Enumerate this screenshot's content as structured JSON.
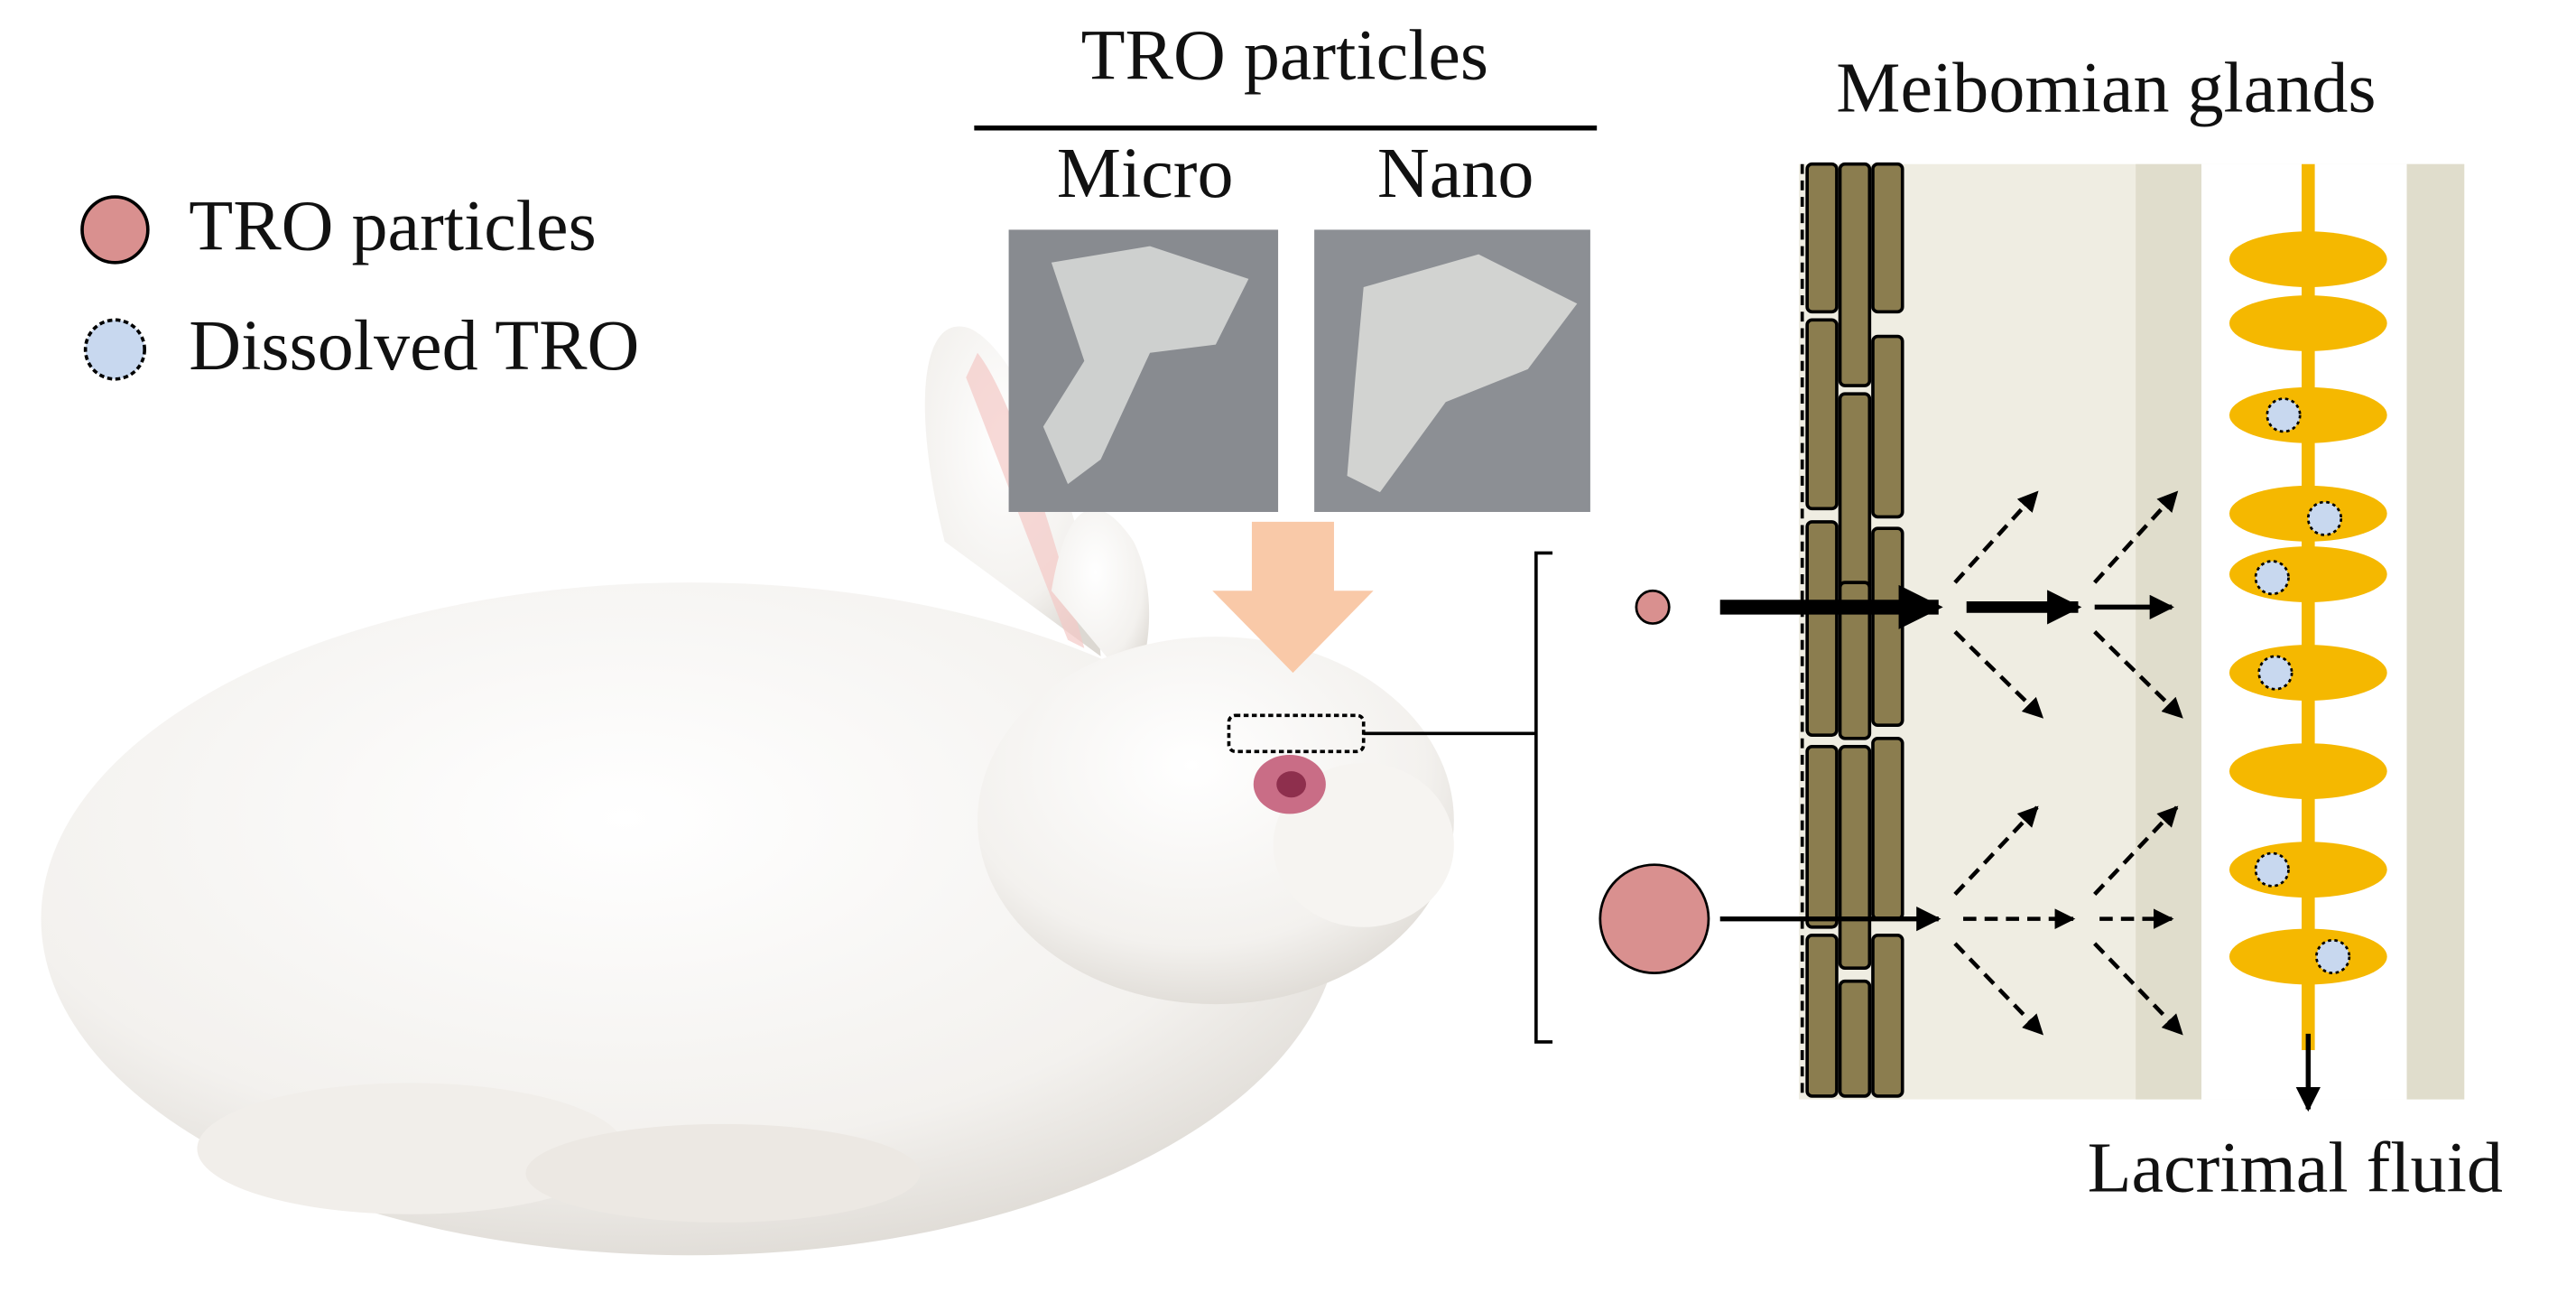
{
  "legend": {
    "items": [
      "TRO particles",
      "Dissolved TRO"
    ]
  },
  "photos": {
    "title": "TRO particles",
    "labels": [
      "Micro",
      "Nano"
    ]
  },
  "glands": {
    "title": "Meibomian glands",
    "output": "Lacrimal fluid"
  }
}
